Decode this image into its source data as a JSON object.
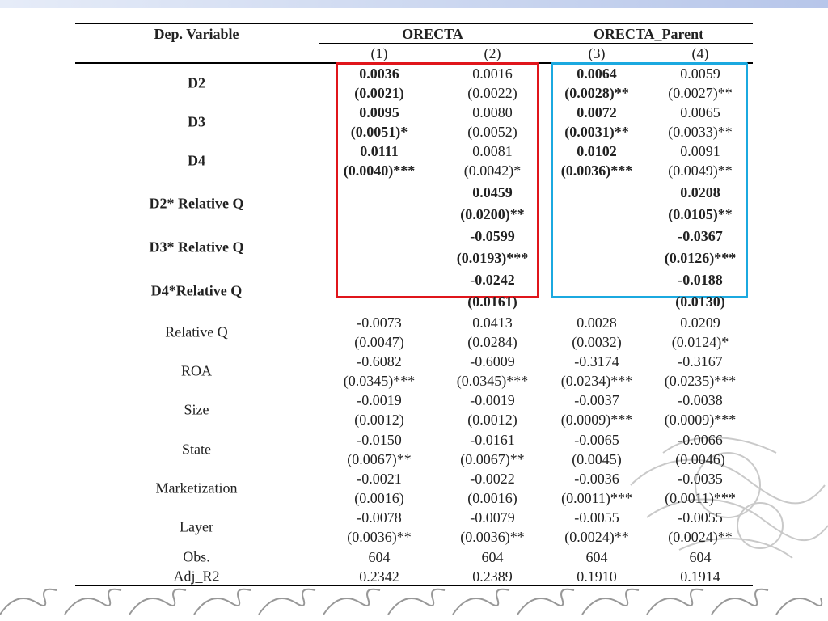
{
  "header": {
    "dep_variable": "Dep. Variable",
    "group1": "ORECTA",
    "group2": "ORECTA_Parent",
    "cols": [
      "(1)",
      "(2)",
      "(3)",
      "(4)"
    ]
  },
  "rows": [
    {
      "label": "D2",
      "bold": true,
      "cells": [
        {
          "v": "0.0036",
          "se": "(0.0021)",
          "bold": true
        },
        {
          "v": "0.0016",
          "se": "(0.0022)",
          "bold": false
        },
        {
          "v": "0.0064",
          "se": "(0.0028)**",
          "bold": true
        },
        {
          "v": "0.0059",
          "se": "(0.0027)**",
          "bold": false
        }
      ]
    },
    {
      "label": "D3",
      "bold": true,
      "cells": [
        {
          "v": "0.0095",
          "se": "(0.0051)*",
          "bold": true
        },
        {
          "v": "0.0080",
          "se": "(0.0052)",
          "bold": false
        },
        {
          "v": "0.0072",
          "se": "(0.0031)**",
          "bold": true
        },
        {
          "v": "0.0065",
          "se": "(0.0033)**",
          "bold": false
        }
      ]
    },
    {
      "label": "D4",
      "bold": true,
      "cells": [
        {
          "v": "0.0111",
          "se": "(0.0040)***",
          "bold": true
        },
        {
          "v": "0.0081",
          "se": "(0.0042)*",
          "bold": false
        },
        {
          "v": "0.0102",
          "se": "(0.0036)***",
          "bold": true
        },
        {
          "v": "0.0091",
          "se": "(0.0049)**",
          "bold": false
        }
      ]
    },
    {
      "label": "D2* Relative Q",
      "bold": true,
      "cells": [
        {
          "v": "",
          "se": "",
          "bold": false
        },
        {
          "v": "0.0459",
          "se": "(0.0200)**",
          "bold": true
        },
        {
          "v": "",
          "se": "",
          "bold": false
        },
        {
          "v": "0.0208",
          "se": "(0.0105)**",
          "bold": true
        }
      ]
    },
    {
      "label": "D3* Relative Q",
      "bold": true,
      "cells": [
        {
          "v": "",
          "se": "",
          "bold": false
        },
        {
          "v": "-0.0599",
          "se": "(0.0193)***",
          "bold": true
        },
        {
          "v": "",
          "se": "",
          "bold": false
        },
        {
          "v": "-0.0367",
          "se": "(0.0126)***",
          "bold": true
        }
      ]
    },
    {
      "label": "D4*Relative Q",
      "bold": true,
      "cells": [
        {
          "v": "",
          "se": "",
          "bold": false
        },
        {
          "v": "-0.0242",
          "se": "(0.0161)",
          "bold": true
        },
        {
          "v": "",
          "se": "",
          "bold": false
        },
        {
          "v": "-0.0188",
          "se": "(0.0130)",
          "bold": true
        }
      ]
    },
    {
      "label": "Relative Q",
      "bold": false,
      "cells": [
        {
          "v": "-0.0073",
          "se": "(0.0047)",
          "bold": false
        },
        {
          "v": "0.0413",
          "se": "(0.0284)",
          "bold": false
        },
        {
          "v": "0.0028",
          "se": "(0.0032)",
          "bold": false
        },
        {
          "v": "0.0209",
          "se": "(0.0124)*",
          "bold": false
        }
      ]
    },
    {
      "label": "ROA",
      "bold": false,
      "cells": [
        {
          "v": "-0.6082",
          "se": "(0.0345)***",
          "bold": false
        },
        {
          "v": "-0.6009",
          "se": "(0.0345)***",
          "bold": false
        },
        {
          "v": "-0.3174",
          "se": "(0.0234)***",
          "bold": false
        },
        {
          "v": "-0.3167",
          "se": "(0.0235)***",
          "bold": false
        }
      ]
    },
    {
      "label": "Size",
      "bold": false,
      "cells": [
        {
          "v": "-0.0019",
          "se": "(0.0012)",
          "bold": false
        },
        {
          "v": "-0.0019",
          "se": "(0.0012)",
          "bold": false
        },
        {
          "v": "-0.0037",
          "se": "(0.0009)***",
          "bold": false
        },
        {
          "v": "-0.0038",
          "se": "(0.0009)***",
          "bold": false
        }
      ]
    },
    {
      "label": "State",
      "bold": false,
      "cells": [
        {
          "v": "-0.0150",
          "se": "(0.0067)**",
          "bold": false
        },
        {
          "v": "-0.0161",
          "se": "(0.0067)**",
          "bold": false
        },
        {
          "v": "-0.0065",
          "se": "(0.0045)",
          "bold": false
        },
        {
          "v": "-0.0066",
          "se": "(0.0046)",
          "bold": false
        }
      ]
    },
    {
      "label": "Marketization",
      "bold": false,
      "cells": [
        {
          "v": "-0.0021",
          "se": "(0.0016)",
          "bold": false
        },
        {
          "v": "-0.0022",
          "se": "(0.0016)",
          "bold": false
        },
        {
          "v": "-0.0036",
          "se": "(0.0011)***",
          "bold": false
        },
        {
          "v": "-0.0035",
          "se": "(0.0011)***",
          "bold": false
        }
      ]
    },
    {
      "label": "Layer",
      "bold": false,
      "cells": [
        {
          "v": "-0.0078",
          "se": "(0.0036)**",
          "bold": false
        },
        {
          "v": "-0.0079",
          "se": "(0.0036)**",
          "bold": false
        },
        {
          "v": "-0.0055",
          "se": "(0.0024)**",
          "bold": false
        },
        {
          "v": "-0.0055",
          "se": "(0.0024)**",
          "bold": false
        }
      ]
    }
  ],
  "footer": [
    {
      "label": "Obs.",
      "cells": [
        "604",
        "604",
        "604",
        "604"
      ]
    },
    {
      "label": "Adj_R2",
      "cells": [
        "0.2342",
        "0.2389",
        "0.1910",
        "0.1914"
      ]
    }
  ],
  "highlight_colors": {
    "red_box": "#e0151b",
    "blue_box": "#1ba9e0"
  }
}
